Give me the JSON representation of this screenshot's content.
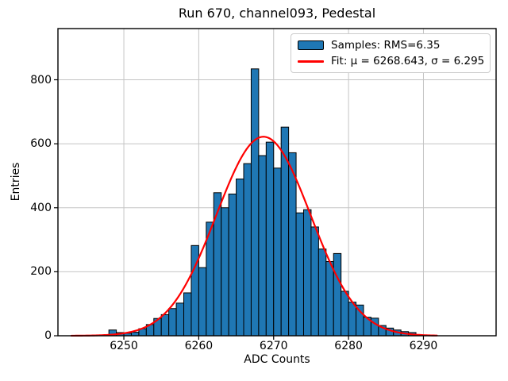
{
  "figure": {
    "title": "Run 670, channel093, Pedestal",
    "background_color": "#ffffff",
    "text_color": "#000000"
  },
  "legend": {
    "position": "upper right",
    "border_color": "#cccccc",
    "items": [
      {
        "label": "Samples: RMS=6.35",
        "marker": "patch",
        "color": "#1f77b4"
      },
      {
        "label": "Fit: μ = 6268.643, σ = 6.295",
        "marker": "line",
        "color": "#ff0000"
      }
    ]
  },
  "chart_data": {
    "type": "bar",
    "title": "Run 670, channel093, Pedestal",
    "xlabel": "ADC Counts",
    "ylabel": "Entries",
    "xlim": [
      6241.2,
      6299.7
    ],
    "ylim": [
      0,
      960
    ],
    "xticks": [
      6250,
      6260,
      6270,
      6280,
      6290
    ],
    "yticks": [
      0,
      200,
      400,
      600,
      800
    ],
    "grid": true,
    "grid_color": "#c4c4c4",
    "spine_color": "#000000",
    "legend_position": "upper right",
    "histogram": {
      "name": "Samples: RMS=6.35",
      "rms": 6.35,
      "bin_start": 6248,
      "bin_width": 1,
      "counts": [
        18,
        10,
        8,
        11,
        22,
        35,
        54,
        66,
        85,
        102,
        134,
        282,
        213,
        355,
        447,
        400,
        443,
        490,
        538,
        834,
        563,
        605,
        524,
        652,
        572,
        384,
        394,
        340,
        271,
        232,
        257,
        139,
        105,
        96,
        58,
        55,
        32,
        24,
        18,
        13,
        10
      ],
      "fill_color": "#1f77b4",
      "edge_color": "#000000"
    },
    "fit": {
      "name": "Fit: μ = 6268.643, σ = 6.295",
      "shape": "gaussian",
      "mu": 6268.643,
      "sigma": 6.295,
      "peak_entries": 622,
      "x_start": 6243.0,
      "x_end": 6291.8,
      "color": "#ff0000",
      "line_width": 2.2
    }
  }
}
